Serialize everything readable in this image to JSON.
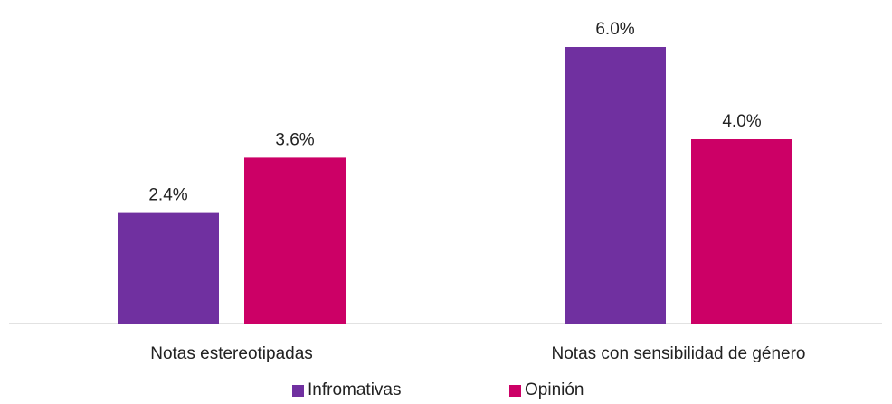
{
  "chart_data": {
    "type": "bar",
    "categories": [
      "Notas estereotipadas",
      "Notas con sensibilidad de género"
    ],
    "series": [
      {
        "name": "Infromativas",
        "values": [
          2.4,
          6.0
        ],
        "color": "#7030a0",
        "labels": [
          "2.4%",
          "6.0%"
        ]
      },
      {
        "name": "Opinión",
        "values": [
          3.6,
          4.0
        ],
        "color": "#cc0066",
        "labels": [
          "3.6%",
          "4.0%"
        ]
      }
    ],
    "title": "",
    "xlabel": "",
    "ylabel": "",
    "ylim": [
      0,
      6.0
    ],
    "grid": false,
    "legend": "bottom"
  }
}
